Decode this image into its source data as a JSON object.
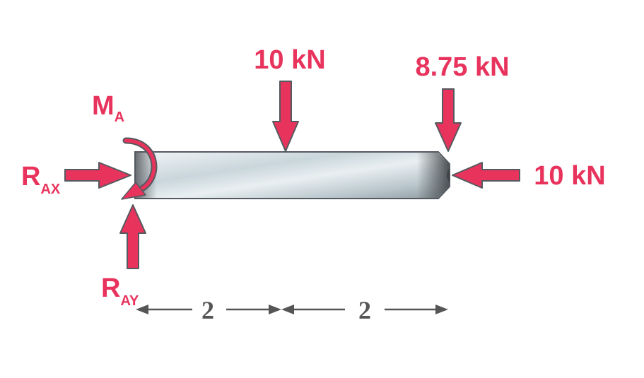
{
  "colors": {
    "force": "#e8335d",
    "outline": "#555a60",
    "dimension": "#555555",
    "beam_light": "#dde6ea",
    "beam_dark": "#5a5e62"
  },
  "loads": {
    "point_load": "10 kN",
    "end_vertical_load": "8.75 kN",
    "end_axial_load": "10 kN"
  },
  "reactions": {
    "moment": {
      "main": "M",
      "sub": "A"
    },
    "horizontal": {
      "main": "R",
      "sub": "AX"
    },
    "vertical": {
      "main": "R",
      "sub": "AY"
    }
  },
  "dimensions": {
    "left_span": "2",
    "right_span": "2"
  }
}
